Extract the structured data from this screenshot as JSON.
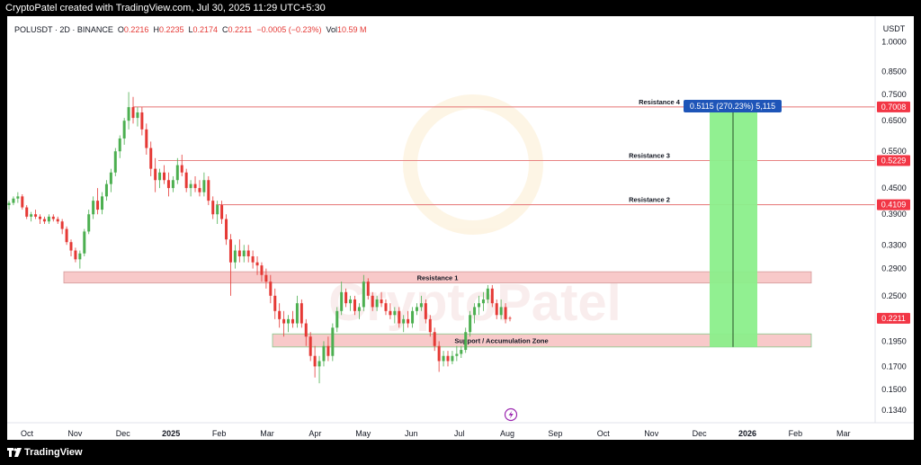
{
  "header": {
    "attribution": "CryptoPatel created with TradingView.com, Jul 30, 2025 11:29 UTC+5:30"
  },
  "footer": {
    "brand": "TradingView"
  },
  "legend": {
    "symbol": "POLUSDT · 2D · BINANCE",
    "o_label": "O",
    "o": "0.2216",
    "h_label": "H",
    "h": "0.2235",
    "l_label": "L",
    "l": "0.2174",
    "c_label": "C",
    "c": "0.2211",
    "change": "−0.0005 (−0.23%)",
    "vol_label": "Vol",
    "vol": "10.59 M"
  },
  "watermark": "CryptoPatel",
  "colors": {
    "up": "#26a69a",
    "up_green": "#4caf50",
    "down": "#e53935",
    "level": "#e57373",
    "zone": "#f8c9c9",
    "projection": "#8bef8b",
    "measure": "#1e55b8"
  },
  "chart_data": {
    "type": "candlestick",
    "y_scale": "log",
    "currency": "USDT",
    "ylim": [
      0.125,
      1.15
    ],
    "x_ticks": [
      "Oct",
      "Nov",
      "Dec",
      "2025",
      "Feb",
      "Mar",
      "Apr",
      "May",
      "Jun",
      "Jul",
      "Aug",
      "Sep",
      "Oct",
      "Nov",
      "Dec",
      "2026",
      "Feb",
      "Mar"
    ],
    "y_ticks": [
      "1.0000",
      "0.8500",
      "0.7500",
      "0.6500",
      "0.5500",
      "0.4500",
      "0.3900",
      "0.3300",
      "0.2900",
      "0.2500",
      "0.1950",
      "0.1700",
      "0.1500",
      "0.1340"
    ],
    "current_price": "0.2211",
    "levels": [
      {
        "name": "Resistance 4",
        "price": "0.7008"
      },
      {
        "name": "Resistance 3",
        "price": "0.5229"
      },
      {
        "name": "Resistance 2",
        "price": "0.4109"
      }
    ],
    "zones": [
      {
        "name": "Resistance 1",
        "low": 0.268,
        "high": 0.285
      },
      {
        "name": "Support / Accumulation Zone",
        "low": 0.189,
        "high": 0.203
      }
    ],
    "projection": {
      "label": "0.5115 (270.23%) 5,115",
      "from": 0.189,
      "to": 0.7008
    },
    "candles": [
      [
        0.41,
        0.42,
        0.4,
        0.415
      ],
      [
        0.415,
        0.43,
        0.41,
        0.425
      ],
      [
        0.425,
        0.44,
        0.415,
        0.43
      ],
      [
        0.43,
        0.435,
        0.4,
        0.405
      ],
      [
        0.405,
        0.41,
        0.38,
        0.385
      ],
      [
        0.385,
        0.395,
        0.375,
        0.39
      ],
      [
        0.39,
        0.4,
        0.38,
        0.385
      ],
      [
        0.385,
        0.39,
        0.37,
        0.38
      ],
      [
        0.38,
        0.385,
        0.37,
        0.375
      ],
      [
        0.375,
        0.39,
        0.37,
        0.385
      ],
      [
        0.385,
        0.39,
        0.375,
        0.38
      ],
      [
        0.38,
        0.385,
        0.37,
        0.375
      ],
      [
        0.375,
        0.38,
        0.35,
        0.36
      ],
      [
        0.36,
        0.365,
        0.33,
        0.335
      ],
      [
        0.335,
        0.34,
        0.31,
        0.32
      ],
      [
        0.32,
        0.325,
        0.3,
        0.305
      ],
      [
        0.305,
        0.32,
        0.29,
        0.315
      ],
      [
        0.315,
        0.36,
        0.31,
        0.355
      ],
      [
        0.355,
        0.4,
        0.35,
        0.39
      ],
      [
        0.39,
        0.43,
        0.38,
        0.42
      ],
      [
        0.42,
        0.45,
        0.39,
        0.4
      ],
      [
        0.4,
        0.44,
        0.39,
        0.43
      ],
      [
        0.43,
        0.47,
        0.42,
        0.46
      ],
      [
        0.46,
        0.5,
        0.44,
        0.49
      ],
      [
        0.49,
        0.56,
        0.48,
        0.55
      ],
      [
        0.55,
        0.6,
        0.53,
        0.59
      ],
      [
        0.59,
        0.66,
        0.57,
        0.65
      ],
      [
        0.65,
        0.76,
        0.62,
        0.7
      ],
      [
        0.7,
        0.74,
        0.64,
        0.66
      ],
      [
        0.66,
        0.7,
        0.63,
        0.68
      ],
      [
        0.68,
        0.7,
        0.6,
        0.62
      ],
      [
        0.62,
        0.64,
        0.54,
        0.56
      ],
      [
        0.56,
        0.58,
        0.48,
        0.5
      ],
      [
        0.5,
        0.53,
        0.44,
        0.47
      ],
      [
        0.47,
        0.5,
        0.45,
        0.49
      ],
      [
        0.49,
        0.51,
        0.46,
        0.47
      ],
      [
        0.47,
        0.49,
        0.43,
        0.45
      ],
      [
        0.45,
        0.48,
        0.44,
        0.47
      ],
      [
        0.47,
        0.53,
        0.46,
        0.51
      ],
      [
        0.51,
        0.54,
        0.48,
        0.49
      ],
      [
        0.49,
        0.5,
        0.44,
        0.45
      ],
      [
        0.45,
        0.47,
        0.43,
        0.46
      ],
      [
        0.46,
        0.48,
        0.44,
        0.45
      ],
      [
        0.45,
        0.47,
        0.43,
        0.44
      ],
      [
        0.44,
        0.49,
        0.43,
        0.47
      ],
      [
        0.47,
        0.48,
        0.41,
        0.42
      ],
      [
        0.42,
        0.43,
        0.38,
        0.39
      ],
      [
        0.39,
        0.42,
        0.37,
        0.41
      ],
      [
        0.41,
        0.42,
        0.37,
        0.38
      ],
      [
        0.38,
        0.39,
        0.33,
        0.34
      ],
      [
        0.34,
        0.35,
        0.25,
        0.3
      ],
      [
        0.3,
        0.33,
        0.29,
        0.32
      ],
      [
        0.32,
        0.34,
        0.3,
        0.31
      ],
      [
        0.31,
        0.33,
        0.3,
        0.32
      ],
      [
        0.32,
        0.33,
        0.3,
        0.31
      ],
      [
        0.31,
        0.32,
        0.29,
        0.3
      ],
      [
        0.3,
        0.31,
        0.28,
        0.295
      ],
      [
        0.295,
        0.3,
        0.27,
        0.28
      ],
      [
        0.28,
        0.29,
        0.26,
        0.27
      ],
      [
        0.27,
        0.28,
        0.24,
        0.25
      ],
      [
        0.25,
        0.26,
        0.22,
        0.23
      ],
      [
        0.23,
        0.24,
        0.21,
        0.22
      ],
      [
        0.22,
        0.23,
        0.2,
        0.215
      ],
      [
        0.215,
        0.225,
        0.205,
        0.22
      ],
      [
        0.22,
        0.23,
        0.21,
        0.215
      ],
      [
        0.215,
        0.25,
        0.21,
        0.24
      ],
      [
        0.24,
        0.245,
        0.21,
        0.215
      ],
      [
        0.215,
        0.22,
        0.19,
        0.2
      ],
      [
        0.2,
        0.205,
        0.175,
        0.18
      ],
      [
        0.18,
        0.19,
        0.16,
        0.17
      ],
      [
        0.17,
        0.18,
        0.155,
        0.175
      ],
      [
        0.175,
        0.195,
        0.17,
        0.19
      ],
      [
        0.19,
        0.2,
        0.175,
        0.18
      ],
      [
        0.18,
        0.215,
        0.175,
        0.21
      ],
      [
        0.21,
        0.235,
        0.205,
        0.23
      ],
      [
        0.23,
        0.27,
        0.225,
        0.255
      ],
      [
        0.255,
        0.26,
        0.235,
        0.24
      ],
      [
        0.24,
        0.25,
        0.23,
        0.245
      ],
      [
        0.245,
        0.25,
        0.225,
        0.23
      ],
      [
        0.23,
        0.24,
        0.22,
        0.235
      ],
      [
        0.235,
        0.28,
        0.23,
        0.27
      ],
      [
        0.27,
        0.275,
        0.245,
        0.25
      ],
      [
        0.25,
        0.255,
        0.23,
        0.235
      ],
      [
        0.235,
        0.25,
        0.23,
        0.245
      ],
      [
        0.245,
        0.255,
        0.235,
        0.24
      ],
      [
        0.24,
        0.245,
        0.225,
        0.23
      ],
      [
        0.23,
        0.24,
        0.22,
        0.225
      ],
      [
        0.225,
        0.235,
        0.215,
        0.23
      ],
      [
        0.23,
        0.235,
        0.21,
        0.215
      ],
      [
        0.215,
        0.225,
        0.205,
        0.22
      ],
      [
        0.22,
        0.23,
        0.21,
        0.215
      ],
      [
        0.215,
        0.235,
        0.21,
        0.23
      ],
      [
        0.23,
        0.24,
        0.225,
        0.235
      ],
      [
        0.235,
        0.25,
        0.23,
        0.24
      ],
      [
        0.24,
        0.245,
        0.215,
        0.22
      ],
      [
        0.22,
        0.225,
        0.2,
        0.205
      ],
      [
        0.205,
        0.21,
        0.185,
        0.19
      ],
      [
        0.19,
        0.195,
        0.165,
        0.175
      ],
      [
        0.175,
        0.185,
        0.17,
        0.18
      ],
      [
        0.18,
        0.185,
        0.17,
        0.175
      ],
      [
        0.175,
        0.185,
        0.172,
        0.18
      ],
      [
        0.18,
        0.19,
        0.175,
        0.182
      ],
      [
        0.182,
        0.19,
        0.178,
        0.186
      ],
      [
        0.186,
        0.21,
        0.183,
        0.205
      ],
      [
        0.205,
        0.23,
        0.2,
        0.225
      ],
      [
        0.225,
        0.24,
        0.215,
        0.235
      ],
      [
        0.235,
        0.25,
        0.225,
        0.24
      ],
      [
        0.24,
        0.255,
        0.23,
        0.245
      ],
      [
        0.245,
        0.265,
        0.24,
        0.26
      ],
      [
        0.26,
        0.265,
        0.235,
        0.24
      ],
      [
        0.24,
        0.245,
        0.22,
        0.225
      ],
      [
        0.225,
        0.245,
        0.22,
        0.235
      ],
      [
        0.235,
        0.24,
        0.215,
        0.22
      ],
      [
        0.2216,
        0.2235,
        0.2174,
        0.2211
      ]
    ]
  }
}
